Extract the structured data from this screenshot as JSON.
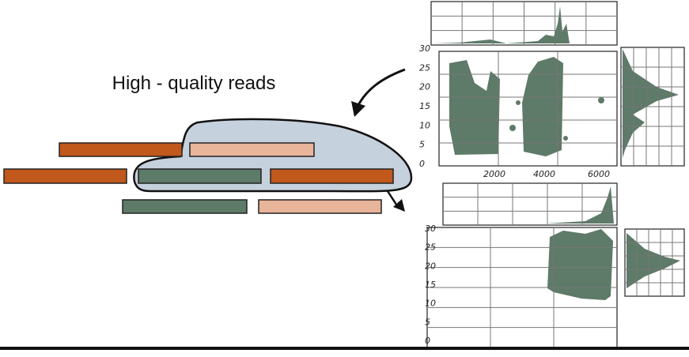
{
  "label": "High - quality reads",
  "plots": [
    {
      "y_ticks": [
        "30",
        "25",
        "20",
        "15",
        "10",
        "5",
        "0"
      ],
      "x_ticks": [
        "2000",
        "4000",
        "6000"
      ]
    },
    {
      "y_ticks": [
        "30",
        "25",
        "20",
        "15",
        "10",
        "5",
        "0"
      ]
    }
  ]
}
